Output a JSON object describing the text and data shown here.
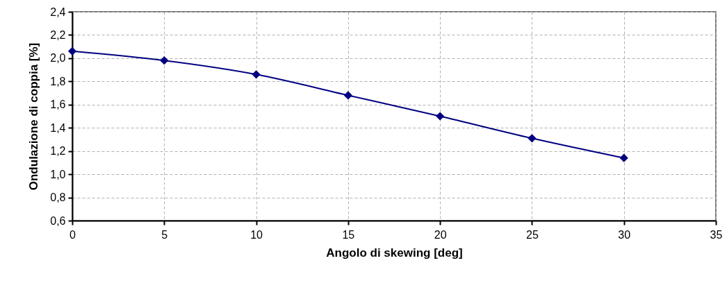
{
  "chart_data": {
    "type": "line",
    "xlabel": "Angolo di skewing [deg]",
    "ylabel": "Ondulazione di coppia [%]",
    "x": [
      0,
      5,
      10,
      15,
      20,
      25,
      30
    ],
    "series": [
      {
        "color": "#000080",
        "values": [
          2.06,
          1.98,
          1.86,
          1.68,
          1.5,
          1.31,
          1.14
        ]
      }
    ],
    "xlim": [
      0,
      35
    ],
    "xticks": [
      0,
      5,
      10,
      15,
      20,
      25,
      30,
      35
    ],
    "ylim": [
      0.6,
      2.4
    ],
    "yticks": [
      {
        "value": 0.6,
        "label": "0,6"
      },
      {
        "value": 0.8,
        "label": "0,8"
      },
      {
        "value": 1.0,
        "label": "1,0"
      },
      {
        "value": 1.2,
        "label": "1,2"
      },
      {
        "value": 1.4,
        "label": "1,4"
      },
      {
        "value": 1.6,
        "label": "1,6"
      },
      {
        "value": 1.8,
        "label": "1,8"
      },
      {
        "value": 2.0,
        "label": "2,0"
      },
      {
        "value": 2.2,
        "label": "2,2"
      },
      {
        "value": 2.4,
        "label": "2,4"
      }
    ],
    "grid": true,
    "marker": "diamond",
    "line_style": "solid"
  }
}
